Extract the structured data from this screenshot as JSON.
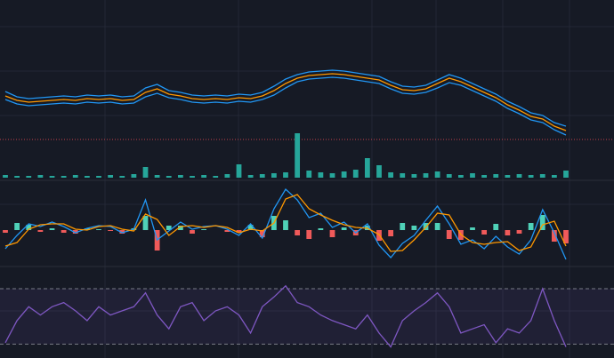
{
  "chart_data": [
    {
      "type": "line",
      "ylim": [
        0,
        200
      ],
      "hline": 43,
      "hline_color": "#c2404a",
      "series": [
        {
          "name": "upper",
          "color": "#2196f3",
          "values": [
            97,
            91,
            89,
            90,
            91,
            92,
            91,
            93,
            92,
            93,
            91,
            92,
            101,
            105,
            98,
            96,
            93,
            92,
            93,
            92,
            94,
            93,
            96,
            103,
            111,
            116,
            119,
            120,
            121,
            120,
            118,
            116,
            114,
            108,
            103,
            102,
            104,
            110,
            116,
            112,
            106,
            100,
            94,
            86,
            80,
            73,
            70,
            62,
            58
          ]
        },
        {
          "name": "middle",
          "color": "#ff9800",
          "values": [
            92,
            87,
            85,
            86,
            87,
            88,
            87,
            89,
            88,
            89,
            87,
            88,
            96,
            100,
            94,
            92,
            89,
            88,
            89,
            88,
            90,
            89,
            92,
            98,
            106,
            112,
            115,
            116,
            117,
            116,
            114,
            112,
            110,
            104,
            99,
            98,
            100,
            106,
            112,
            108,
            102,
            96,
            90,
            82,
            76,
            69,
            66,
            58,
            53
          ]
        },
        {
          "name": "lower",
          "color": "#2196f3",
          "values": [
            88,
            83,
            81,
            82,
            83,
            84,
            83,
            85,
            84,
            85,
            83,
            84,
            91,
            95,
            90,
            88,
            85,
            84,
            85,
            84,
            86,
            85,
            88,
            93,
            101,
            108,
            111,
            112,
            113,
            112,
            110,
            108,
            106,
            100,
            95,
            94,
            96,
            101,
            107,
            104,
            98,
            92,
            86,
            78,
            72,
            65,
            62,
            54,
            48
          ]
        }
      ]
    },
    {
      "type": "bar",
      "ylim": [
        0,
        60
      ],
      "color": "#26a69a",
      "values": [
        3,
        2,
        2,
        3,
        2,
        2,
        3,
        2,
        2,
        3,
        2,
        4,
        12,
        3,
        2,
        3,
        2,
        3,
        2,
        4,
        15,
        3,
        4,
        5,
        6,
        50,
        8,
        6,
        5,
        7,
        9,
        22,
        14,
        6,
        5,
        4,
        5,
        7,
        4,
        3,
        5,
        3,
        4,
        3,
        4,
        3,
        4,
        3,
        8
      ]
    },
    {
      "type": "line",
      "ylim": [
        -41,
        54
      ],
      "series": [
        {
          "name": "hist",
          "type": "bar",
          "color": "#4fd1b8",
          "negative_color": "#f05a5a",
          "values": [
            -3,
            8,
            6,
            -2,
            2,
            -3,
            -4,
            2,
            1,
            -1,
            -4,
            2,
            16,
            -23,
            5,
            5,
            -4,
            1,
            0,
            -2,
            -3,
            6,
            -8,
            16,
            11,
            -6,
            -10,
            2,
            -8,
            3,
            -6,
            5,
            -12,
            -7,
            8,
            5,
            8,
            8,
            -10,
            -11,
            3,
            -5,
            7,
            -6,
            -4,
            8,
            17,
            -13,
            -15
          ]
        },
        {
          "name": "macd",
          "color": "#2196f3",
          "values": [
            -21,
            -6,
            7,
            4,
            9,
            4,
            -3,
            2,
            5,
            4,
            -3,
            1,
            34,
            -11,
            -1,
            9,
            1,
            4,
            5,
            1,
            -6,
            7,
            -9,
            24,
            46,
            34,
            14,
            19,
            3,
            9,
            -3,
            7,
            -17,
            -31,
            -15,
            -6,
            11,
            27,
            7,
            -16,
            -11,
            -21,
            -7,
            -19,
            -27,
            -11,
            23,
            -3,
            -33
          ]
        },
        {
          "name": "signal",
          "color": "#ff9800",
          "values": [
            -18,
            -14,
            1,
            6,
            7,
            7,
            1,
            0,
            4,
            5,
            1,
            -1,
            18,
            12,
            -6,
            4,
            5,
            3,
            5,
            3,
            -3,
            1,
            -1,
            8,
            35,
            40,
            24,
            17,
            11,
            6,
            3,
            2,
            -5,
            -24,
            -23,
            -11,
            3,
            19,
            17,
            -5,
            -14,
            -16,
            -14,
            -13,
            -23,
            -19,
            6,
            10,
            -18
          ]
        }
      ]
    },
    {
      "type": "line",
      "ylim": [
        20,
        86
      ],
      "levels": [
        70,
        30
      ],
      "level_color": "#787b86",
      "fill": "rgba(126,87,194,0.1)",
      "series": [
        {
          "name": "rsi",
          "color": "#7e57c2",
          "values": [
            31,
            47,
            57,
            51,
            57,
            60,
            54,
            47,
            57,
            51,
            54,
            57,
            67,
            51,
            41,
            57,
            60,
            47,
            54,
            57,
            51,
            38,
            57,
            64,
            72,
            60,
            57,
            51,
            47,
            44,
            41,
            51,
            38,
            28,
            47,
            54,
            60,
            67,
            57,
            38,
            41,
            44,
            31,
            41,
            38,
            47,
            70,
            47,
            28
          ]
        }
      ]
    }
  ]
}
